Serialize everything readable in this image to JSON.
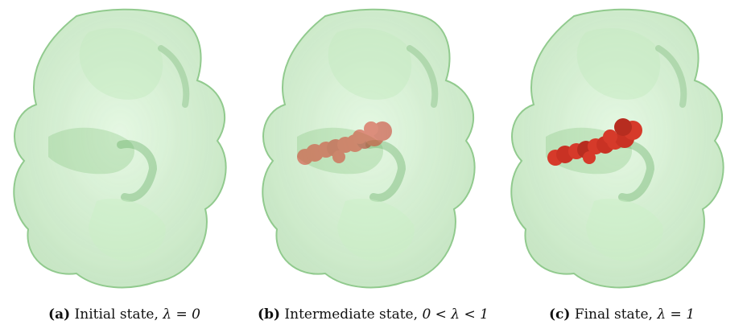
{
  "figure": {
    "panels": [
      {
        "id": "a",
        "tag": "(a)",
        "text": "Initial state,",
        "math": "λ = 0",
        "ligand": "none"
      },
      {
        "id": "b",
        "tag": "(b)",
        "text": "Intermediate state,",
        "math": "0 < λ < 1",
        "ligand": "translucent"
      },
      {
        "id": "c",
        "tag": "(c)",
        "text": "Final state,",
        "math": "λ = 1",
        "ligand": "solid"
      }
    ],
    "colors": {
      "protein": "#b8e6b4",
      "protein_edge": "#7fbf7a",
      "protein_dark": "#5aa55a",
      "ligand": "#d63a2a"
    }
  }
}
